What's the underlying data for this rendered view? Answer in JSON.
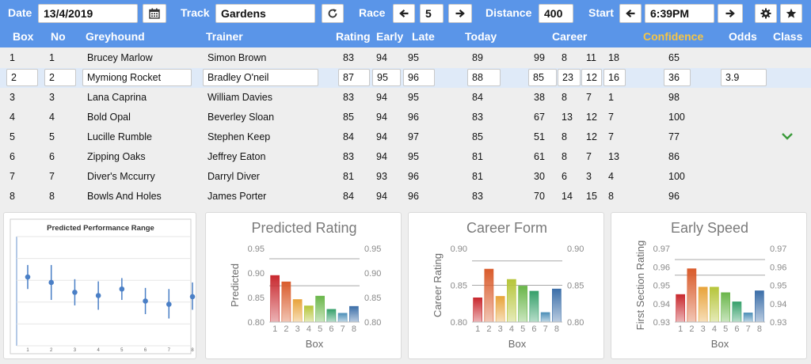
{
  "toolbar": {
    "date_label": "Date",
    "date_value": "13/4/2019",
    "calendar_icon": "calendar-icon",
    "track_label": "Track",
    "track_value": "Gardens",
    "refresh_icon": "refresh-icon",
    "race_label": "Race",
    "race_value": "5",
    "prev_race_icon": "arrow-left-icon",
    "next_race_icon": "arrow-right-icon",
    "distance_label": "Distance",
    "distance_value": "400",
    "start_label": "Start",
    "start_value": "6:39PM",
    "prev_start_icon": "arrow-left-icon",
    "next_start_icon": "arrow-right-icon",
    "settings_icon": "gear-icon",
    "favorite_icon": "star-icon"
  },
  "table": {
    "headers": {
      "box": "Box",
      "no": "No",
      "greyhound": "Greyhound",
      "trainer": "Trainer",
      "rating": "Rating",
      "early": "Early",
      "late": "Late",
      "today": "Today",
      "career": "Career",
      "confidence": "Confidence",
      "odds": "Odds",
      "class": "Class"
    },
    "rows": [
      {
        "box": "1",
        "no": "1",
        "greyhound": "Brucey Marlow",
        "trainer": "Simon Brown",
        "rating": "83",
        "early": "94",
        "late": "95",
        "today": "89",
        "career": "99",
        "c1": "8",
        "c2": "11",
        "c3": "18",
        "confidence": "65",
        "odds": "",
        "cls": ""
      },
      {
        "box": "2",
        "no": "2",
        "greyhound": "Mymiong Rocket",
        "trainer": "Bradley O'neil",
        "rating": "87",
        "early": "95",
        "late": "96",
        "today": "88",
        "career": "85",
        "c1": "23",
        "c2": "12",
        "c3": "16",
        "confidence": "36",
        "odds": "3.9",
        "cls": ""
      },
      {
        "box": "3",
        "no": "3",
        "greyhound": "Lana Caprina",
        "trainer": "William Davies",
        "rating": "83",
        "early": "94",
        "late": "95",
        "today": "84",
        "career": "38",
        "c1": "8",
        "c2": "7",
        "c3": "1",
        "confidence": "98",
        "odds": "",
        "cls": ""
      },
      {
        "box": "4",
        "no": "4",
        "greyhound": "Bold Opal",
        "trainer": "Beverley Sloan",
        "rating": "85",
        "early": "94",
        "late": "96",
        "today": "83",
        "career": "67",
        "c1": "13",
        "c2": "12",
        "c3": "7",
        "confidence": "100",
        "odds": "",
        "cls": ""
      },
      {
        "box": "5",
        "no": "5",
        "greyhound": "Lucille Rumble",
        "trainer": "Stephen Keep",
        "rating": "84",
        "early": "94",
        "late": "97",
        "today": "85",
        "career": "51",
        "c1": "8",
        "c2": "12",
        "c3": "7",
        "confidence": "77",
        "odds": "",
        "cls": "chevron-down-icon"
      },
      {
        "box": "6",
        "no": "6",
        "greyhound": "Zipping Oaks",
        "trainer": "Jeffrey Eaton",
        "rating": "83",
        "early": "94",
        "late": "95",
        "today": "81",
        "career": "61",
        "c1": "8",
        "c2": "7",
        "c3": "13",
        "confidence": "86",
        "odds": "",
        "cls": ""
      },
      {
        "box": "7",
        "no": "7",
        "greyhound": "Diver's Mccurry",
        "trainer": "Darryl Diver",
        "rating": "81",
        "early": "93",
        "late": "96",
        "today": "81",
        "career": "30",
        "c1": "6",
        "c2": "3",
        "c3": "4",
        "confidence": "100",
        "odds": "",
        "cls": ""
      },
      {
        "box": "8",
        "no": "8",
        "greyhound": "Bowls And Holes",
        "trainer": "James Porter",
        "rating": "84",
        "early": "94",
        "late": "96",
        "today": "83",
        "career": "70",
        "c1": "14",
        "c2": "15",
        "c3": "8",
        "confidence": "96",
        "odds": "",
        "cls": ""
      }
    ],
    "selected_row": 1
  },
  "chart_data": [
    {
      "type": "scatter",
      "title": "Predicted Performance Range",
      "x": [
        "1",
        "2",
        "3",
        "4",
        "5",
        "6",
        "7",
        "8"
      ],
      "values": [
        0.63,
        0.58,
        0.49,
        0.46,
        0.52,
        0.41,
        0.38,
        0.45
      ],
      "low": [
        0.52,
        0.42,
        0.37,
        0.33,
        0.42,
        0.29,
        0.25,
        0.33
      ],
      "high": [
        0.74,
        0.74,
        0.61,
        0.59,
        0.62,
        0.53,
        0.52,
        0.58
      ],
      "color": "#4a7fc6",
      "grid": true
    },
    {
      "type": "bar",
      "title": "Predicted Rating",
      "categories": [
        "1",
        "2",
        "3",
        "4",
        "5",
        "6",
        "7",
        "8"
      ],
      "values": [
        0.895,
        0.882,
        0.846,
        0.833,
        0.853,
        0.826,
        0.818,
        0.832
      ],
      "xlabel": "Box",
      "ylabel": "Predicted",
      "ylim": [
        0.8,
        0.95
      ],
      "yticks": [
        "0.80",
        "0.85",
        "0.90",
        "0.95"
      ],
      "reflines": [
        0.929,
        0.874
      ],
      "colors": [
        "#c8282e",
        "#d95b2b",
        "#e8a33a",
        "#b6c53a",
        "#6ab64a",
        "#35a06a",
        "#4d8fb8",
        "#3b6ea8"
      ]
    },
    {
      "type": "bar",
      "title": "Career Form",
      "categories": [
        "1",
        "2",
        "3",
        "4",
        "5",
        "6",
        "7",
        "8"
      ],
      "values": [
        0.833,
        0.872,
        0.835,
        0.858,
        0.849,
        0.842,
        0.813,
        0.845
      ],
      "xlabel": "Box",
      "ylabel": "Career Rating",
      "ylim": [
        0.8,
        0.9
      ],
      "yticks": [
        "0.80",
        "0.85",
        "0.90"
      ],
      "reflines": [
        0.883,
        0.85
      ],
      "colors": [
        "#c8282e",
        "#d95b2b",
        "#e8a33a",
        "#b6c53a",
        "#6ab64a",
        "#35a06a",
        "#4d8fb8",
        "#3b6ea8"
      ]
    },
    {
      "type": "bar",
      "title": "Early Speed",
      "categories": [
        "1",
        "2",
        "3",
        "4",
        "5",
        "6",
        "7",
        "8"
      ],
      "values": [
        0.945,
        0.959,
        0.949,
        0.949,
        0.946,
        0.941,
        0.935,
        0.947
      ],
      "xlabel": "Box",
      "ylabel": "First Section Rating",
      "ylim": [
        0.93,
        0.97
      ],
      "yticks": [
        "0.93",
        "0.94",
        "0.95",
        "0.96",
        "0.97"
      ],
      "reflines": [
        0.964,
        0.9555
      ],
      "colors": [
        "#c8282e",
        "#d95b2b",
        "#e8a33a",
        "#b6c53a",
        "#6ab64a",
        "#35a06a",
        "#4d8fb8",
        "#3b6ea8"
      ]
    }
  ]
}
